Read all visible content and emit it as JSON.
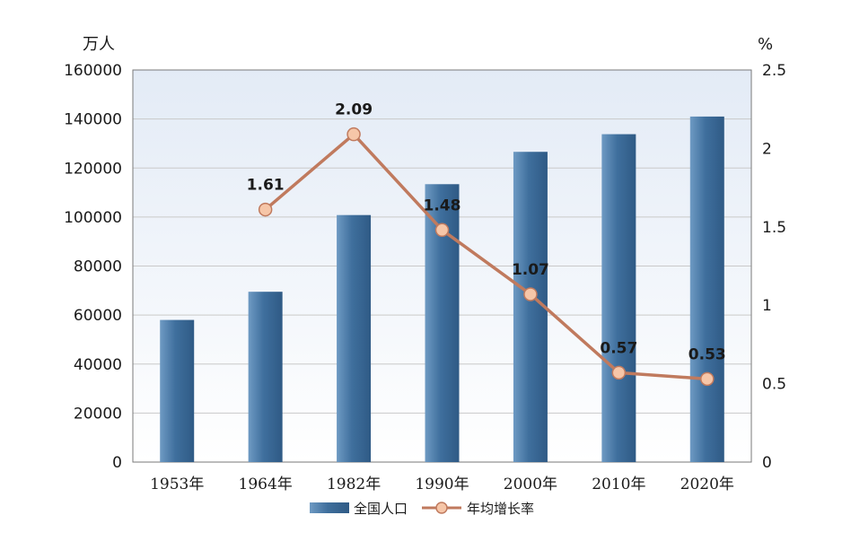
{
  "chart_data": {
    "type": "bar",
    "categories": [
      "1953年",
      "1964年",
      "1982年",
      "1990年",
      "2000年",
      "2010年",
      "2020年"
    ],
    "series": [
      {
        "name": "全国人口",
        "type": "bar",
        "axis": "left",
        "values": [
          58000,
          69500,
          100800,
          113400,
          126600,
          133800,
          141000
        ]
      },
      {
        "name": "年均增长率",
        "type": "line",
        "axis": "right",
        "values": [
          null,
          1.61,
          2.09,
          1.48,
          1.07,
          0.57,
          0.53
        ],
        "data_labels": [
          "",
          "1.61",
          "2.09",
          "1.48",
          "1.07",
          "0.57",
          "0.53"
        ]
      }
    ],
    "y_left": {
      "unit": "万人",
      "ylim": [
        0,
        160000
      ],
      "ticks": [
        "0",
        "20000",
        "40000",
        "60000",
        "80000",
        "100000",
        "120000",
        "140000",
        "160000"
      ]
    },
    "y_right": {
      "unit": "%",
      "ylim": [
        0,
        2.5
      ],
      "ticks": [
        "0",
        "0.5",
        "1",
        "1.5",
        "2",
        "2.5"
      ]
    },
    "grid": true,
    "legend": "bottom-center",
    "colors": {
      "bar": "#3f6f9d",
      "bar_light": "#6e9ac3",
      "line": "#c07a5e",
      "marker_fill": "#f6c6a8",
      "plot_bg_top": "#e3ebf6",
      "plot_bg_bottom": "#ffffff",
      "grid": "#c9c9c9",
      "frame": "#7a7a7a"
    }
  }
}
